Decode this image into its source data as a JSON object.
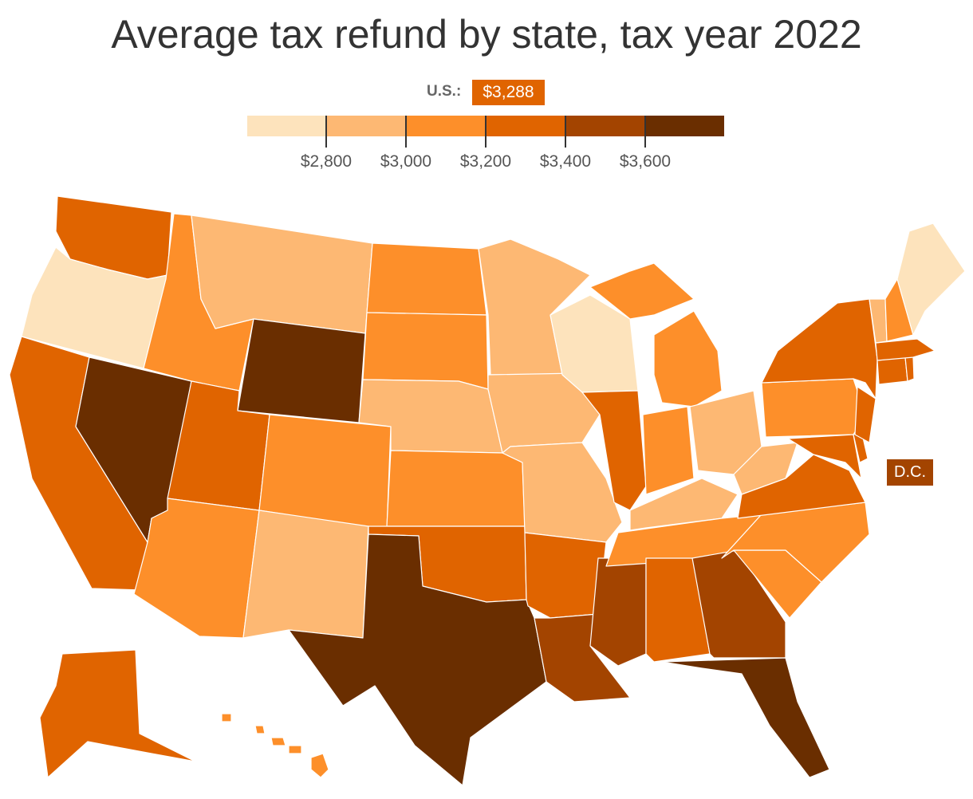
{
  "title": "Average tax refund by state, tax year 2022",
  "legend": {
    "us_label": "U.S.:",
    "us_value": "$3,288",
    "ticks": [
      "$2,800",
      "$3,000",
      "$3,200",
      "$3,400",
      "$3,600"
    ],
    "colors": [
      "#fde3bc",
      "#fdb873",
      "#fd8f2a",
      "#e06400",
      "#a34400",
      "#6a2e00"
    ]
  },
  "dc_label": "D.C.",
  "chart_data": {
    "type": "choropleth",
    "unit": "USD",
    "bins": [
      {
        "range": "< $2,800",
        "color": "#fde3bc"
      },
      {
        "range": "$2,800–$3,000",
        "color": "#fdb873"
      },
      {
        "range": "$3,000–$3,200",
        "color": "#fd8f2a"
      },
      {
        "range": "$3,200–$3,400",
        "color": "#e06400"
      },
      {
        "range": "$3,400–$3,600",
        "color": "#a34400"
      },
      {
        "range": "> $3,600",
        "color": "#6a2e00"
      }
    ],
    "us_average": 3288,
    "states": [
      {
        "code": "WA",
        "bin": 3
      },
      {
        "code": "OR",
        "bin": 0
      },
      {
        "code": "CA",
        "bin": 3
      },
      {
        "code": "NV",
        "bin": 5
      },
      {
        "code": "ID",
        "bin": 2
      },
      {
        "code": "MT",
        "bin": 1
      },
      {
        "code": "WY",
        "bin": 5
      },
      {
        "code": "UT",
        "bin": 3
      },
      {
        "code": "AZ",
        "bin": 2
      },
      {
        "code": "CO",
        "bin": 2
      },
      {
        "code": "NM",
        "bin": 1
      },
      {
        "code": "ND",
        "bin": 2
      },
      {
        "code": "SD",
        "bin": 2
      },
      {
        "code": "NE",
        "bin": 1
      },
      {
        "code": "KS",
        "bin": 2
      },
      {
        "code": "OK",
        "bin": 3
      },
      {
        "code": "TX",
        "bin": 5
      },
      {
        "code": "MN",
        "bin": 1
      },
      {
        "code": "IA",
        "bin": 1
      },
      {
        "code": "MO",
        "bin": 1
      },
      {
        "code": "AR",
        "bin": 3
      },
      {
        "code": "LA",
        "bin": 4
      },
      {
        "code": "WI",
        "bin": 0
      },
      {
        "code": "IL",
        "bin": 3
      },
      {
        "code": "MS",
        "bin": 4
      },
      {
        "code": "MI",
        "bin": 2
      },
      {
        "code": "IN",
        "bin": 2
      },
      {
        "code": "KY",
        "bin": 1
      },
      {
        "code": "TN",
        "bin": 2
      },
      {
        "code": "AL",
        "bin": 3
      },
      {
        "code": "OH",
        "bin": 1
      },
      {
        "code": "WV",
        "bin": 1
      },
      {
        "code": "GA",
        "bin": 4
      },
      {
        "code": "FL",
        "bin": 5
      },
      {
        "code": "SC",
        "bin": 2
      },
      {
        "code": "NC",
        "bin": 2
      },
      {
        "code": "VA",
        "bin": 3
      },
      {
        "code": "PA",
        "bin": 2
      },
      {
        "code": "NY",
        "bin": 3
      },
      {
        "code": "MD",
        "bin": 3
      },
      {
        "code": "DE",
        "bin": 3
      },
      {
        "code": "NJ",
        "bin": 3
      },
      {
        "code": "CT",
        "bin": 3
      },
      {
        "code": "RI",
        "bin": 3
      },
      {
        "code": "MA",
        "bin": 3
      },
      {
        "code": "VT",
        "bin": 1
      },
      {
        "code": "NH",
        "bin": 2
      },
      {
        "code": "ME",
        "bin": 0
      },
      {
        "code": "AK",
        "bin": 3
      },
      {
        "code": "HI",
        "bin": 2
      },
      {
        "code": "DC",
        "bin": 4
      }
    ]
  }
}
